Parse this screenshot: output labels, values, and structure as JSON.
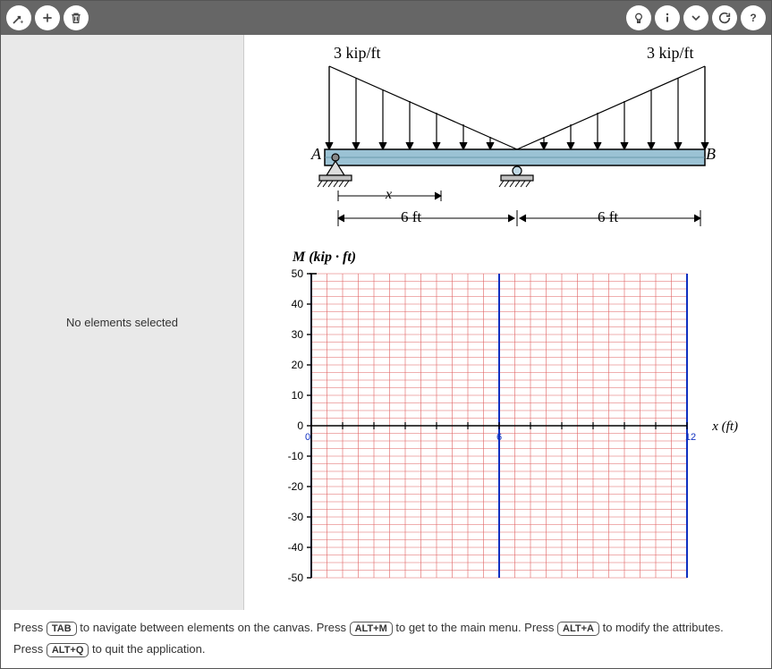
{
  "toolbar": {
    "icons_left": [
      "vector-add",
      "plus",
      "trash"
    ],
    "icons_right": [
      "bulb",
      "info",
      "chevron-down",
      "reload",
      "help"
    ]
  },
  "sidebar": {
    "message": "No elements selected"
  },
  "beam": {
    "load_left_label": "3 kip/ft",
    "load_right_label": "3 kip/ft",
    "point_A": "A",
    "point_B": "B",
    "x_label": "x",
    "span_left": "6 ft",
    "span_right": "6 ft",
    "beam_color": "#9bc2d4",
    "beam_border": "#000",
    "support_base_color": "#bfbfbf"
  },
  "chart": {
    "title": "M (kip · ft)",
    "x_axis_label": "x (ft)",
    "xlim": [
      0,
      12
    ],
    "ylim": [
      -50,
      50
    ],
    "ytick_step": 10,
    "xtick_major": [
      0,
      6,
      12
    ],
    "xtick_minor_step": 0.5,
    "ytick_minor_step": 2.5,
    "grid_color": "#e06060",
    "axis_color": "#000000",
    "vertical_lines_color": "#1030c0",
    "background": "#ffffff",
    "label_fontsize": 12,
    "xtick_label_color": "#1030c0"
  },
  "help": {
    "line1_parts": [
      "Press ",
      "TAB",
      " to navigate between elements on the canvas. Press ",
      "ALT+M",
      " to get to the main menu. Press ",
      "ALT+A",
      " to modify the attributes."
    ],
    "line2_parts": [
      "Press ",
      "ALT+Q",
      " to quit the application."
    ]
  }
}
